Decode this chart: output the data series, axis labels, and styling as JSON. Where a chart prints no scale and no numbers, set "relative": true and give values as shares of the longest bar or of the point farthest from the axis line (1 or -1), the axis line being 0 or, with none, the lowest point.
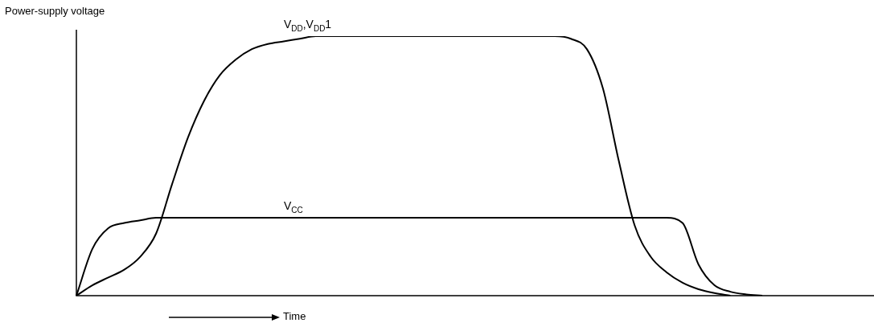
{
  "chart_data": {
    "type": "line",
    "relative": true,
    "ylabel": "Power-supply voltage",
    "xlabel": "Time",
    "marker": "none",
    "line_style": "solid",
    "legend": false,
    "categories": [
      null,
      null,
      null,
      null,
      null,
      null,
      null,
      null,
      null,
      null,
      null,
      null,
      null,
      null,
      null,
      null,
      null,
      null,
      null,
      null,
      null,
      null,
      null,
      null,
      null,
      null,
      null,
      null,
      null,
      null,
      null,
      null,
      null,
      null,
      null,
      null,
      null,
      null,
      null,
      null,
      null,
      null,
      null,
      null,
      null,
      null,
      null,
      null,
      null,
      null,
      null
    ],
    "series": [
      {
        "name": "V$_{DD}$,V$_{DD}$1",
        "color": "#000000",
        "values": [
          0,
          0.04,
          0.07,
          0.1,
          0.15,
          0.24,
          0.43,
          0.61,
          0.75,
          0.85,
          0.91,
          0.95,
          0.97,
          0.98,
          0.99,
          1,
          1,
          1,
          1,
          1,
          1,
          1,
          1,
          1,
          1,
          1,
          1,
          1,
          1,
          1,
          1,
          0.99,
          0.95,
          0.8,
          0.52,
          0.27,
          0.15,
          0.09,
          0.05,
          0.025,
          0.01,
          0,
          null,
          null,
          null,
          null,
          null,
          null,
          null,
          null,
          null
        ]
      },
      {
        "name": "V$_{CC}$",
        "color": "#000000",
        "values": [
          0,
          0.18,
          0.26,
          0.28,
          0.29,
          0.3,
          0.3,
          0.3,
          0.3,
          0.3,
          0.3,
          0.3,
          0.3,
          0.3,
          0.3,
          0.3,
          0.3,
          0.3,
          0.3,
          0.3,
          0.3,
          0.3,
          0.3,
          0.3,
          0.3,
          0.3,
          0.3,
          0.3,
          0.3,
          0.3,
          0.3,
          0.3,
          0.3,
          0.3,
          0.3,
          0.3,
          0.3,
          0.3,
          0.28,
          0.12,
          0.04,
          0.015,
          0.005,
          0,
          null,
          null,
          null,
          null,
          null,
          null,
          null
        ]
      }
    ]
  }
}
